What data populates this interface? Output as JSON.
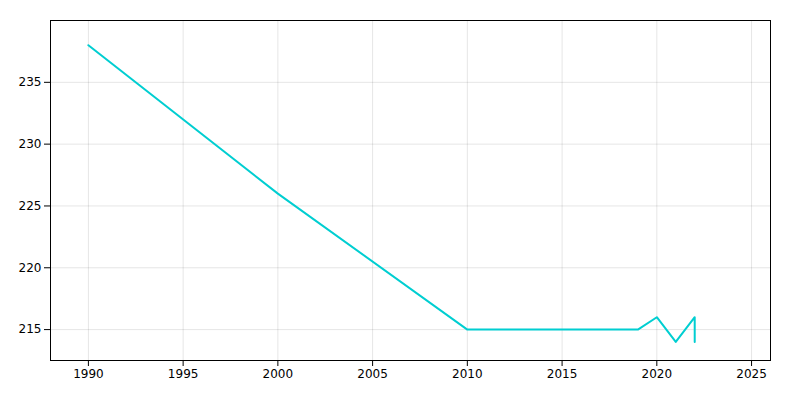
{
  "chart_data": {
    "type": "line",
    "x": [
      1990,
      2000,
      2010,
      2011,
      2012,
      2013,
      2014,
      2015,
      2016,
      2017,
      2018,
      2019,
      2020,
      2021,
      2022,
      2022
    ],
    "values": [
      238,
      226,
      215,
      215,
      215,
      215,
      215,
      215,
      215,
      215,
      215,
      215,
      216,
      214,
      216,
      214
    ],
    "color": "#00CED1",
    "xlim": [
      1988,
      2026
    ],
    "ylim": [
      212.5,
      240
    ],
    "xticks": [
      1990,
      1995,
      2000,
      2005,
      2010,
      2015,
      2020,
      2025
    ],
    "yticks": [
      215,
      220,
      225,
      230,
      235
    ],
    "grid": true
  }
}
